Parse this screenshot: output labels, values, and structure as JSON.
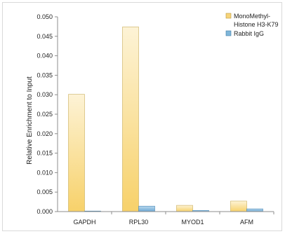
{
  "chart_data": {
    "type": "bar",
    "title": "",
    "xlabel": "",
    "ylabel": "Relative Enrichment to Input",
    "categories": [
      "GAPDH",
      "RPL30",
      "MYOD1",
      "AFM"
    ],
    "series": [
      {
        "name": "MonoMethyl-Histone H3-K79",
        "values": [
          0.0301,
          0.0474,
          0.0016,
          0.0027
        ],
        "color": "#f6d47a"
      },
      {
        "name": "Rabbit IgG",
        "values": [
          0.0001,
          0.0014,
          0.0003,
          0.0007
        ],
        "color": "#7fb6d9"
      }
    ],
    "legend": {
      "position": "top-right",
      "entries": [
        {
          "line1": "MonoMethyl-",
          "line2": "Histone H3-K79"
        },
        {
          "line1": "Rabbit IgG",
          "line2": ""
        }
      ]
    },
    "ylim": [
      0,
      0.05
    ],
    "yticks": [
      "0.000",
      "0.005",
      "0.010",
      "0.015",
      "0.020",
      "0.025",
      "0.030",
      "0.035",
      "0.040",
      "0.045",
      "0.050"
    ],
    "grid": false
  }
}
